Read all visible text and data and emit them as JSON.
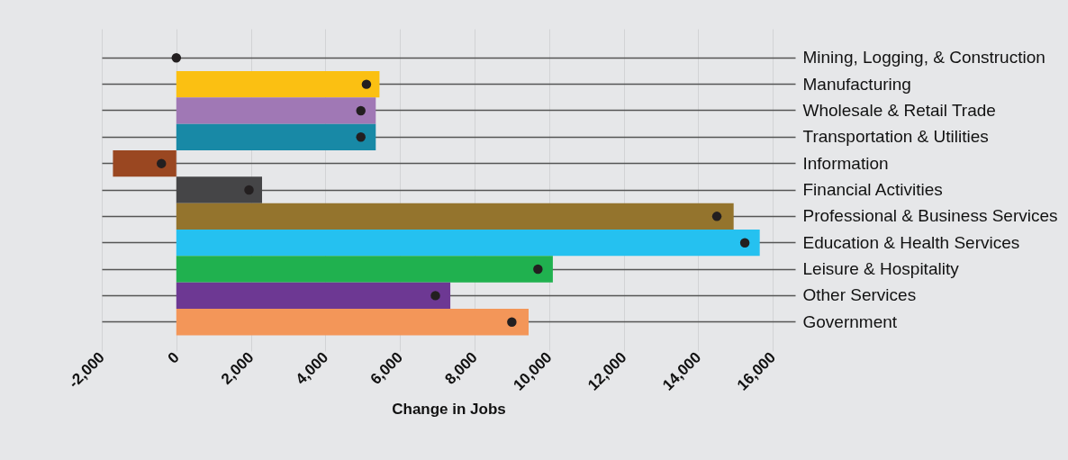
{
  "chart_data": {
    "type": "bar",
    "orientation": "horizontal",
    "xlabel": "Change in Jobs",
    "categories": [
      "Mining, Logging, & Construction",
      "Manufacturing",
      "Wholesale & Retail Trade",
      "Transportation & Utilities",
      "Information",
      "Financial Activities",
      "Professional & Business Services",
      "Education & Health Services",
      "Leisure & Hospitality",
      "Other Services",
      "Government"
    ],
    "series": [
      {
        "colors": [
          "#fbc012",
          "#fbc012",
          "#a078b5",
          "#1889a6",
          "#9a4721",
          "#454547",
          "#94742d",
          "#25c1f0",
          "#20b14f",
          "#6d3893",
          "#f39659"
        ],
        "values": [
          0,
          5450,
          5350,
          5350,
          -1700,
          2300,
          14950,
          15650,
          10100,
          7350,
          9450
        ]
      },
      {
        "type": "scatter",
        "color": "#231f20",
        "marker": "circle",
        "values": [
          0,
          5100,
          4950,
          4950,
          -400,
          1950,
          14500,
          15250,
          9700,
          6950,
          9000
        ]
      }
    ],
    "xlim": [
      -2000,
      16600
    ],
    "xticks": [
      {
        "value": -2000,
        "label": "-2,000"
      },
      0,
      {
        "value": 2000,
        "label": "2,000"
      },
      {
        "value": 4000,
        "label": "4,000"
      },
      {
        "value": 6000,
        "label": "6,000"
      },
      {
        "value": 8000,
        "label": "8,000"
      },
      {
        "value": 10000,
        "label": "10,000"
      },
      {
        "value": 12000,
        "label": "12,000"
      },
      {
        "value": 14000,
        "label": "14,000"
      },
      {
        "value": 16000,
        "label": "16,000"
      }
    ],
    "grid": "x"
  }
}
